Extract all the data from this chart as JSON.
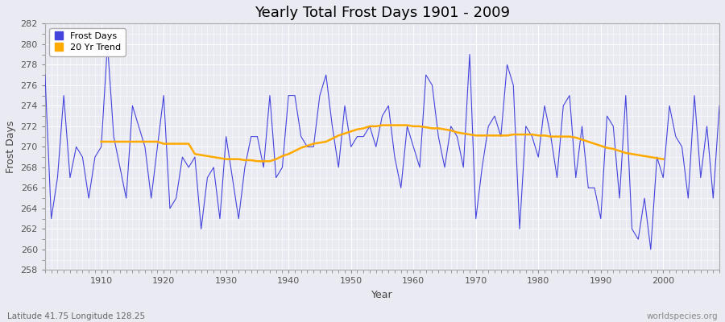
{
  "title": "Yearly Total Frost Days 1901 - 2009",
  "xlabel": "Year",
  "ylabel": "Frost Days",
  "ylim": [
    258,
    282
  ],
  "yticks": [
    258,
    260,
    262,
    264,
    266,
    268,
    270,
    272,
    274,
    276,
    278,
    280,
    282
  ],
  "xlim": [
    1901,
    2009
  ],
  "xticks": [
    1910,
    1920,
    1930,
    1940,
    1950,
    1960,
    1970,
    1980,
    1990,
    2000
  ],
  "line_color": "#4444dd",
  "trend_color": "#ffaa00",
  "bg_color": "#eaeaf2",
  "fig_color": "#eaeaf2",
  "grid_color": "#ffffff",
  "legend_labels": [
    "Frost Days",
    "20 Yr Trend"
  ],
  "bottom_left_text": "Latitude 41.75 Longitude 128.25",
  "bottom_right_text": "worldspecies.org",
  "frost_days": [
    277,
    263,
    267,
    275,
    267,
    270,
    269,
    265,
    269,
    270,
    280,
    271,
    268,
    265,
    274,
    272,
    270,
    265,
    270,
    275,
    264,
    265,
    269,
    268,
    269,
    262,
    267,
    268,
    263,
    271,
    267,
    263,
    268,
    271,
    271,
    268,
    275,
    267,
    268,
    275,
    275,
    271,
    270,
    270,
    275,
    277,
    272,
    268,
    274,
    270,
    271,
    271,
    272,
    270,
    273,
    274,
    269,
    266,
    272,
    270,
    268,
    277,
    276,
    271,
    268,
    272,
    271,
    268,
    279,
    263,
    268,
    272,
    273,
    271,
    278,
    276,
    262,
    272,
    271,
    269,
    274,
    271,
    267,
    274,
    275,
    267,
    272,
    266,
    266,
    263,
    273,
    272,
    265,
    275,
    262,
    261,
    265,
    260,
    269,
    267,
    274,
    271,
    270,
    265,
    275,
    267,
    272,
    265,
    274
  ],
  "trend_years": [
    1910,
    1911,
    1912,
    1913,
    1914,
    1915,
    1916,
    1917,
    1918,
    1919,
    1920,
    1921,
    1922,
    1923,
    1924,
    1925,
    1926,
    1927,
    1928,
    1929,
    1930,
    1931,
    1932,
    1933,
    1934,
    1935,
    1936,
    1937,
    1938,
    1939,
    1940,
    1941,
    1942,
    1943,
    1944,
    1945,
    1946,
    1947,
    1948,
    1949,
    1950,
    1951,
    1952,
    1953,
    1954,
    1955,
    1956,
    1957,
    1958,
    1959,
    1960,
    1961,
    1962,
    1963,
    1964,
    1965,
    1966,
    1967,
    1968,
    1969,
    1970,
    1971,
    1972,
    1973,
    1974,
    1975,
    1976,
    1977,
    1978,
    1979,
    1980,
    1981,
    1982,
    1983,
    1984,
    1985,
    1986,
    1987,
    1988,
    1989,
    1990,
    1991,
    1992,
    1993,
    1994,
    1995,
    1996,
    1997,
    1998,
    1999,
    2000
  ],
  "trend_values": [
    270.5,
    270.5,
    270.5,
    270.5,
    270.5,
    270.5,
    270.5,
    270.5,
    270.5,
    270.5,
    270.3,
    270.3,
    270.3,
    270.3,
    270.3,
    269.3,
    269.2,
    269.1,
    269.0,
    268.9,
    268.8,
    268.8,
    268.8,
    268.7,
    268.7,
    268.6,
    268.6,
    268.6,
    268.8,
    269.1,
    269.3,
    269.6,
    269.9,
    270.1,
    270.3,
    270.4,
    270.5,
    270.8,
    271.1,
    271.3,
    271.5,
    271.7,
    271.8,
    272.0,
    272.0,
    272.1,
    272.1,
    272.1,
    272.1,
    272.1,
    272.0,
    272.0,
    271.9,
    271.8,
    271.8,
    271.7,
    271.6,
    271.4,
    271.3,
    271.2,
    271.1,
    271.1,
    271.1,
    271.1,
    271.1,
    271.1,
    271.2,
    271.2,
    271.2,
    271.2,
    271.1,
    271.1,
    271.0,
    271.0,
    271.0,
    271.0,
    270.9,
    270.7,
    270.5,
    270.3,
    270.1,
    269.9,
    269.8,
    269.6,
    269.4,
    269.3,
    269.2,
    269.1,
    269.0,
    268.9,
    268.8
  ]
}
